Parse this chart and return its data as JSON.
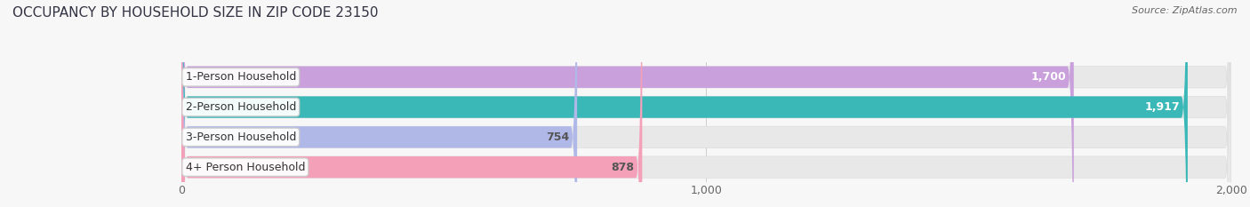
{
  "title": "OCCUPANCY BY HOUSEHOLD SIZE IN ZIP CODE 23150",
  "source": "Source: ZipAtlas.com",
  "categories": [
    "1-Person Household",
    "2-Person Household",
    "3-Person Household",
    "4+ Person Household"
  ],
  "values": [
    1700,
    1917,
    754,
    878
  ],
  "bar_colors": [
    "#c9a0dc",
    "#3ab8b8",
    "#b0b8e8",
    "#f4a0b8"
  ],
  "value_label_colors": [
    "white",
    "white",
    "#555555",
    "#555555"
  ],
  "xlim": [
    0,
    2000
  ],
  "xticks": [
    0,
    1000,
    2000
  ],
  "bar_height": 0.72,
  "background_color": "#f7f7f7",
  "bar_bg_color": "#e8e8e8",
  "title_fontsize": 11,
  "source_fontsize": 8,
  "label_fontsize": 9,
  "value_fontsize": 9
}
